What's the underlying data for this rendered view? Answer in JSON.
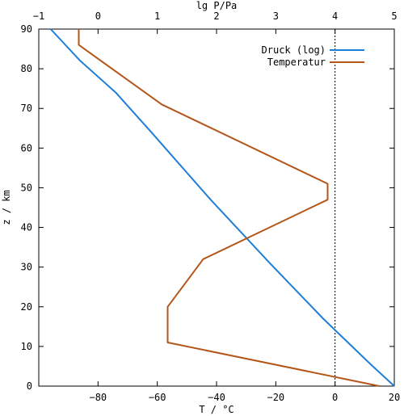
{
  "chart_data": {
    "type": "line",
    "title": "",
    "x_bottom": {
      "label": "T / °C",
      "range": [
        -100,
        20
      ],
      "ticks": [
        -80,
        -60,
        -40,
        -20,
        0,
        20
      ],
      "tick_labels": [
        "−80",
        "−60",
        "−40",
        "−20",
        "0",
        "20"
      ]
    },
    "x_top": {
      "label": "lg P/Pa",
      "range": [
        -1,
        5
      ],
      "ticks": [
        -1,
        0,
        1,
        2,
        3,
        4,
        5
      ],
      "tick_labels": [
        "−1",
        "0",
        "1",
        "2",
        "3",
        "4",
        "5"
      ]
    },
    "y": {
      "label": "z / km",
      "range": [
        0,
        90
      ],
      "ticks": [
        0,
        10,
        20,
        30,
        40,
        50,
        60,
        70,
        80,
        90
      ],
      "tick_labels": [
        "0",
        "10",
        "20",
        "30",
        "40",
        "50",
        "60",
        "70",
        "80",
        "90"
      ]
    },
    "reference_line": {
      "x_axis": "bottom",
      "value": 0,
      "style": "dotted"
    },
    "legend_position": "top-right",
    "grid": false,
    "series": [
      {
        "name": "Druck (log)",
        "axis": "top",
        "color": "#1f7fd6",
        "points": [
          {
            "x": 5.0,
            "y": 0
          },
          {
            "x": 4.6,
            "y": 5.5
          },
          {
            "x": 3.8,
            "y": 17
          },
          {
            "x": 2.9,
            "y": 31
          },
          {
            "x": 1.9,
            "y": 47
          },
          {
            "x": 0.9,
            "y": 64
          },
          {
            "x": 0.3,
            "y": 74
          },
          {
            "x": -0.3,
            "y": 82
          },
          {
            "x": -0.8,
            "y": 90
          }
        ]
      },
      {
        "name": "Temperatur",
        "axis": "bottom",
        "color": "#b3561a",
        "points": [
          {
            "x": 15,
            "y": 0
          },
          {
            "x": -56.5,
            "y": 11
          },
          {
            "x": -56.5,
            "y": 20
          },
          {
            "x": -44.5,
            "y": 32
          },
          {
            "x": -2.5,
            "y": 47
          },
          {
            "x": -2.5,
            "y": 51
          },
          {
            "x": -58.5,
            "y": 71
          },
          {
            "x": -86.5,
            "y": 86
          },
          {
            "x": -86.5,
            "y": 90
          }
        ]
      }
    ]
  }
}
